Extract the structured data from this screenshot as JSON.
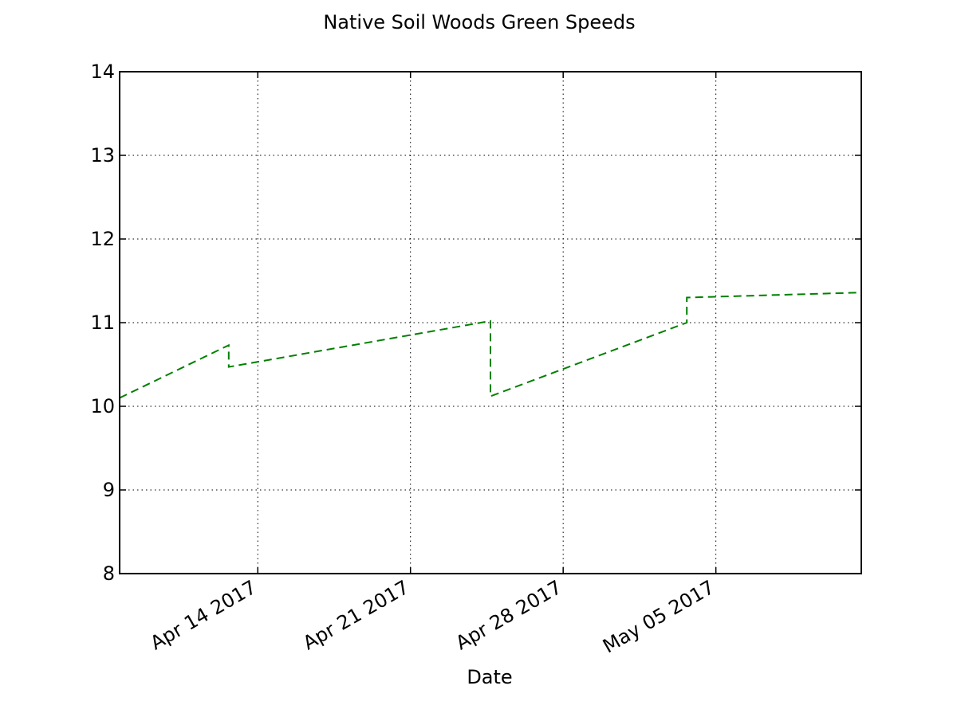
{
  "chart_data": {
    "type": "line",
    "title": "Native Soil Woods Green Speeds",
    "xlabel": "Date",
    "ylabel": "",
    "x_type": "date",
    "xlim": [
      "2017-04-07T16:00",
      "2017-05-11T16:00"
    ],
    "ylim": [
      8,
      14
    ],
    "x_ticks": [
      {
        "date": "2017-04-14",
        "label": "Apr 14 2017"
      },
      {
        "date": "2017-04-21",
        "label": "Apr 21 2017"
      },
      {
        "date": "2017-04-28",
        "label": "Apr 28 2017"
      },
      {
        "date": "2017-05-05",
        "label": "May 05 2017"
      }
    ],
    "y_ticks": [
      "8",
      "9",
      "10",
      "11",
      "12",
      "13",
      "14"
    ],
    "grid": true,
    "series": [
      {
        "color": "#008000",
        "line_style": "dashed",
        "points": [
          {
            "x": "2017-04-07T16:00",
            "y": 10.1
          },
          {
            "x": "2017-04-12T16:00",
            "y": 10.73
          },
          {
            "x": "2017-04-12T16:00",
            "y": 10.47
          },
          {
            "x": "2017-04-24T16:00",
            "y": 11.02
          },
          {
            "x": "2017-04-24T16:00",
            "y": 10.12
          },
          {
            "x": "2017-05-03T16:00",
            "y": 11.0
          },
          {
            "x": "2017-05-03T16:00",
            "y": 11.3
          },
          {
            "x": "2017-05-11T16:00",
            "y": 11.36
          }
        ]
      }
    ]
  }
}
